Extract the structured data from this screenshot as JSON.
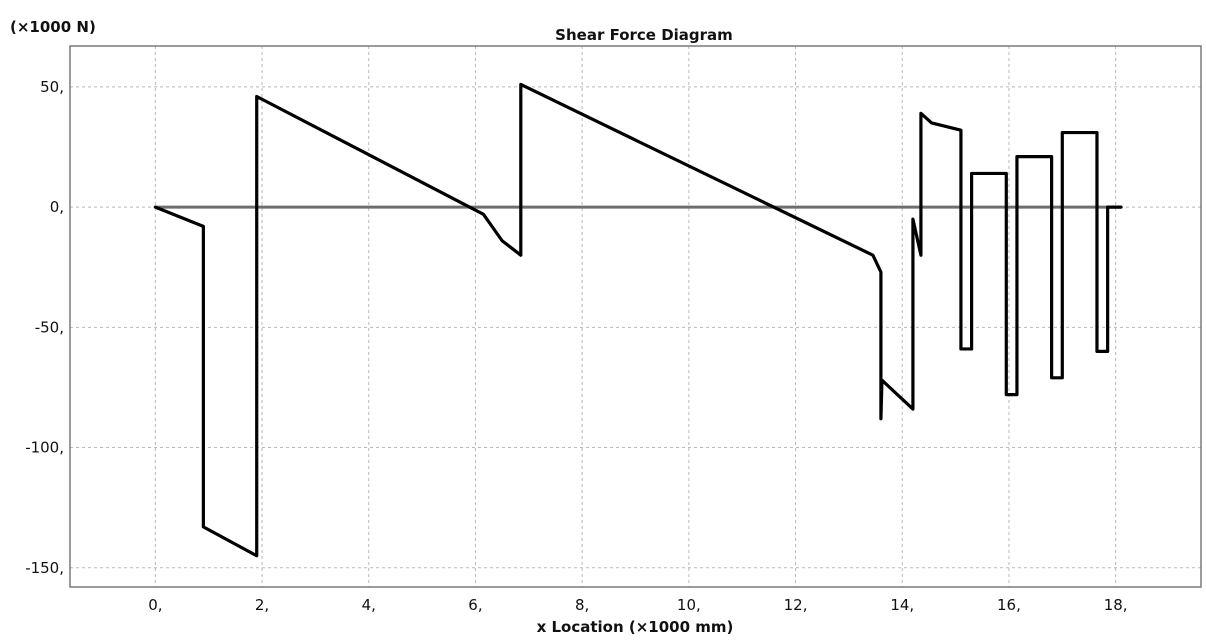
{
  "chart_data": {
    "type": "line",
    "title": "Shear Force Diagram",
    "xlabel": "x Location (×1000 mm)",
    "ylabel_unit": "(×1000 N)",
    "xlim": [
      -1.6,
      19.6
    ],
    "ylim": [
      -158,
      67
    ],
    "x_ticks": [
      0,
      2,
      4,
      6,
      8,
      10,
      12,
      14,
      16,
      18
    ],
    "x_tick_labels": [
      "0,",
      "2,",
      "4,",
      "6,",
      "8,",
      "10,",
      "12,",
      "14,",
      "16,",
      "18,"
    ],
    "y_ticks": [
      50,
      0,
      -50,
      -100,
      -150
    ],
    "y_tick_labels": [
      "50,",
      "0,",
      "-50,",
      "-100,",
      "-150,"
    ],
    "grid": true,
    "zero_line_x": [
      0,
      18.1
    ],
    "series": [
      {
        "points": [
          [
            0,
            0
          ],
          [
            0.9,
            -8
          ],
          [
            0.9,
            -133
          ],
          [
            1.9,
            -145
          ],
          [
            1.9,
            46
          ],
          [
            6.15,
            -3
          ],
          [
            6.5,
            -14
          ],
          [
            6.85,
            -20
          ],
          [
            6.85,
            51
          ],
          [
            13.45,
            -20
          ],
          [
            13.6,
            -27
          ],
          [
            13.6,
            -88
          ],
          [
            13.62,
            -72
          ],
          [
            14.2,
            -84
          ],
          [
            14.2,
            -5
          ],
          [
            14.35,
            -20
          ],
          [
            14.35,
            39
          ],
          [
            14.55,
            35
          ],
          [
            15.1,
            32
          ],
          [
            15.1,
            -59
          ],
          [
            15.3,
            -59
          ],
          [
            15.3,
            14
          ],
          [
            15.95,
            14
          ],
          [
            15.95,
            -78
          ],
          [
            16.15,
            -78
          ],
          [
            16.15,
            21
          ],
          [
            16.8,
            21
          ],
          [
            16.8,
            -71
          ],
          [
            17.0,
            -71
          ],
          [
            17.0,
            31
          ],
          [
            17.65,
            31
          ],
          [
            17.65,
            -60
          ],
          [
            17.85,
            -60
          ],
          [
            17.85,
            0
          ],
          [
            18.1,
            0
          ]
        ]
      }
    ]
  }
}
